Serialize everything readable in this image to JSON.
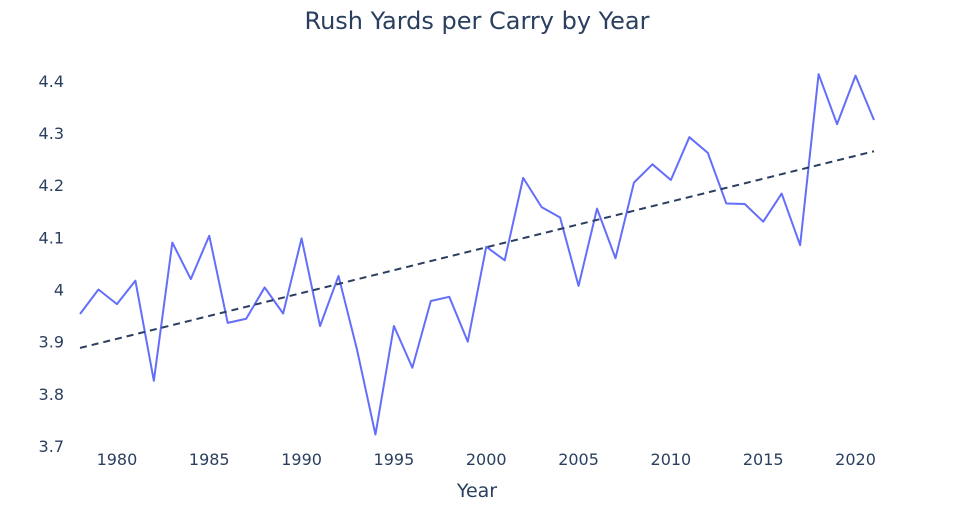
{
  "chart_data": {
    "type": "line",
    "title": "Rush Yards per Carry by Year",
    "xlabel": "Year",
    "ylabel": "",
    "xlim": [
      1978,
      2021
    ],
    "ylim": [
      3.7,
      4.44
    ],
    "x_ticks": [
      1980,
      1985,
      1990,
      1995,
      2000,
      2005,
      2010,
      2015,
      2020
    ],
    "y_ticks": [
      3.7,
      3.8,
      3.9,
      4,
      4.1,
      4.2,
      4.3,
      4.4
    ],
    "y_tick_labels": [
      "3.7",
      "3.8",
      "3.9",
      "4",
      "4.1",
      "4.2",
      "4.3",
      "4.4"
    ],
    "grid": false,
    "series": [
      {
        "style": "solid",
        "color": "#636efa",
        "x": [
          1978,
          1979,
          1980,
          1981,
          1982,
          1983,
          1984,
          1985,
          1986,
          1987,
          1988,
          1989,
          1990,
          1991,
          1992,
          1993,
          1994,
          1995,
          1996,
          1997,
          1998,
          1999,
          2000,
          2001,
          2002,
          2003,
          2004,
          2005,
          2006,
          2007,
          2008,
          2009,
          2010,
          2011,
          2012,
          2013,
          2014,
          2015,
          2016,
          2017,
          2018,
          2019,
          2020,
          2021
        ],
        "y": [
          3.953,
          4.0,
          3.972,
          4.017,
          3.825,
          4.09,
          4.02,
          4.103,
          3.936,
          3.944,
          4.004,
          3.954,
          4.098,
          3.93,
          4.026,
          3.885,
          3.722,
          3.93,
          3.85,
          3.978,
          3.986,
          3.9,
          4.082,
          4.056,
          4.214,
          4.158,
          4.138,
          4.007,
          4.155,
          4.06,
          4.205,
          4.24,
          4.21,
          4.292,
          4.262,
          4.165,
          4.164,
          4.13,
          4.184,
          4.085,
          4.413,
          4.317,
          4.41,
          4.325
        ]
      },
      {
        "style": "dashed",
        "color": "#2a3f5f",
        "x": [
          1978,
          2021
        ],
        "y": [
          3.888,
          4.265
        ]
      }
    ]
  }
}
